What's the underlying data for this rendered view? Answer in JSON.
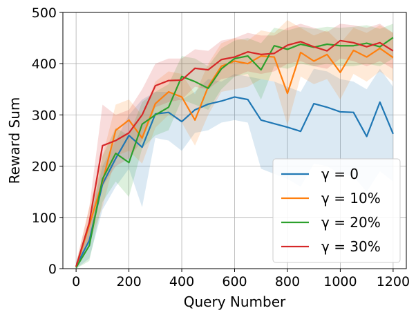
{
  "chart_data": {
    "type": "line",
    "xlabel": "Query Number",
    "ylabel": "Reward Sum",
    "xlim": [
      -50,
      1250
    ],
    "ylim": [
      0,
      500
    ],
    "xticks": [
      0,
      200,
      400,
      600,
      800,
      1000,
      1200
    ],
    "yticks": [
      0,
      100,
      200,
      300,
      400,
      500
    ],
    "grid": true,
    "legend_position": "lower-right",
    "x": [
      0,
      50,
      100,
      150,
      200,
      250,
      300,
      350,
      400,
      450,
      500,
      550,
      600,
      650,
      700,
      750,
      800,
      850,
      900,
      950,
      1000,
      1050,
      1100,
      1150,
      1200
    ],
    "series": [
      {
        "name": "γ = 0",
        "color": "#1f77b4",
        "values": [
          5,
          55,
          165,
          215,
          260,
          237,
          302,
          305,
          287,
          310,
          321,
          327,
          335,
          330,
          290,
          283,
          276,
          268,
          322,
          315,
          306,
          305,
          258,
          325,
          263
        ],
        "lower": [
          0,
          20,
          115,
          160,
          195,
          120,
          255,
          250,
          230,
          265,
          270,
          285,
          290,
          285,
          195,
          185,
          175,
          160,
          205,
          200,
          185,
          180,
          150,
          190,
          170
        ],
        "upper": [
          12,
          90,
          200,
          250,
          300,
          330,
          345,
          345,
          330,
          345,
          370,
          365,
          380,
          375,
          370,
          365,
          355,
          345,
          390,
          385,
          370,
          365,
          350,
          390,
          355
        ]
      },
      {
        "name": "γ = 10%",
        "color": "#ff7f0e",
        "values": [
          3,
          85,
          170,
          270,
          290,
          255,
          322,
          345,
          335,
          290,
          355,
          395,
          405,
          400,
          415,
          413,
          342,
          422,
          405,
          418,
          383,
          426,
          413,
          430,
          412
        ],
        "lower": [
          0,
          50,
          120,
          220,
          230,
          205,
          275,
          300,
          285,
          240,
          300,
          345,
          350,
          355,
          370,
          365,
          280,
          375,
          360,
          370,
          330,
          380,
          365,
          385,
          365
        ],
        "upper": [
          10,
          120,
          220,
          320,
          330,
          300,
          365,
          385,
          380,
          340,
          400,
          440,
          450,
          445,
          465,
          460,
          485,
          470,
          455,
          465,
          440,
          470,
          460,
          475,
          460
        ]
      },
      {
        "name": "γ = 20%",
        "color": "#2ca02c",
        "values": [
          2,
          45,
          175,
          225,
          207,
          282,
          300,
          315,
          375,
          365,
          352,
          390,
          410,
          415,
          388,
          435,
          428,
          438,
          432,
          438,
          435,
          435,
          440,
          433,
          451
        ],
        "lower": [
          0,
          15,
          130,
          170,
          140,
          235,
          260,
          270,
          330,
          320,
          310,
          350,
          375,
          380,
          330,
          395,
          390,
          400,
          395,
          400,
          395,
          395,
          400,
          395,
          410
        ],
        "upper": [
          8,
          80,
          220,
          275,
          260,
          325,
          345,
          360,
          415,
          410,
          395,
          430,
          445,
          450,
          440,
          470,
          465,
          472,
          468,
          472,
          470,
          472,
          475,
          468,
          478
        ]
      },
      {
        "name": "γ = 30%",
        "color": "#d62728",
        "values": [
          4,
          90,
          240,
          250,
          265,
          300,
          357,
          367,
          368,
          391,
          388,
          408,
          413,
          423,
          418,
          420,
          436,
          443,
          433,
          425,
          445,
          441,
          433,
          441,
          425
        ],
        "lower": [
          0,
          55,
          160,
          200,
          215,
          250,
          315,
          325,
          330,
          355,
          350,
          370,
          375,
          385,
          380,
          385,
          400,
          405,
          395,
          390,
          410,
          405,
          395,
          405,
          390
        ],
        "upper": [
          10,
          120,
          320,
          300,
          310,
          350,
          400,
          410,
          410,
          428,
          425,
          445,
          450,
          460,
          455,
          455,
          470,
          478,
          470,
          462,
          478,
          475,
          470,
          478,
          460
        ]
      }
    ]
  }
}
